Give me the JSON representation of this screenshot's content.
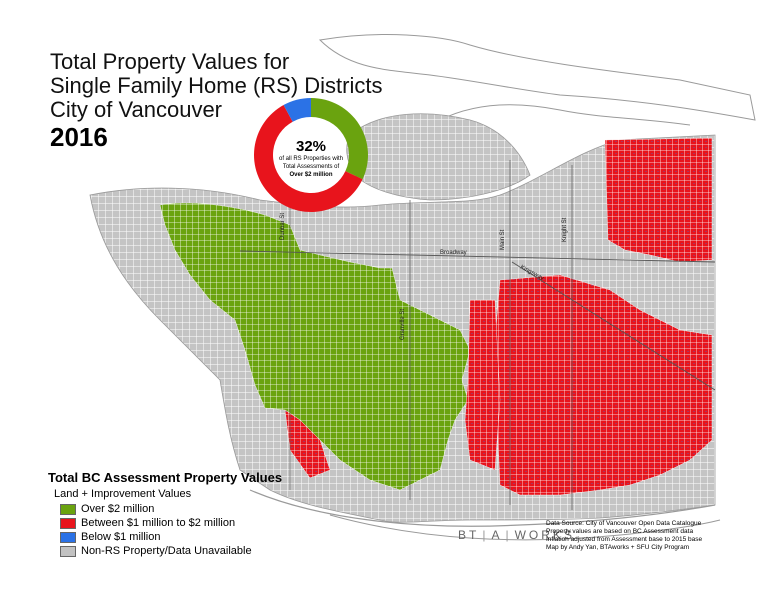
{
  "title": {
    "line1": "Total Property Values for",
    "line2": "Single Family Home (RS) Districts",
    "line3": "City of Vancouver",
    "year": "2016"
  },
  "donut": {
    "percent": "32%",
    "caption1": "of all RS Properties with",
    "caption2": "Total Assessments of",
    "caption3": "Over $2 million",
    "shares": {
      "over_2m": 0.32,
      "between_1m_2m": 0.6,
      "below_1m": 0.08
    }
  },
  "legend": {
    "title": "Total BC Assessment Property Values",
    "subtitle": "Land + Improvement Values",
    "items": [
      {
        "label": "Over $2 million",
        "color": "#6aa30f"
      },
      {
        "label": "Between $1 million to $2 million",
        "color": "#e8141c"
      },
      {
        "label": "Below $1 million",
        "color": "#2b72e6"
      },
      {
        "label": "Non-RS Property/Data Unavailable",
        "color": "#c2c2c2"
      }
    ]
  },
  "streets": {
    "dunbar": "Dunbar St",
    "granville": "Granville St",
    "main": "Main St",
    "knight": "Knight St",
    "broadway": "Broadway",
    "kingsway": "Kingsway"
  },
  "brand": {
    "part1": "BT",
    "part2": "A",
    "part3": "WORKS"
  },
  "source": {
    "line1": "Data Source: City of Vancouver Open Data Catalogue",
    "line2": "Property values are based on BC Assessment data",
    "line3": "Inflation adjusted from Assessment base to 2015 base",
    "line4": "Map by Andy Yan, BTAworks + SFU City Program"
  },
  "colors": {
    "green": "#6aa30f",
    "red": "#e8141c",
    "blue": "#2b72e6",
    "grey": "#c2c2c2",
    "outline": "#9a9a9a"
  }
}
